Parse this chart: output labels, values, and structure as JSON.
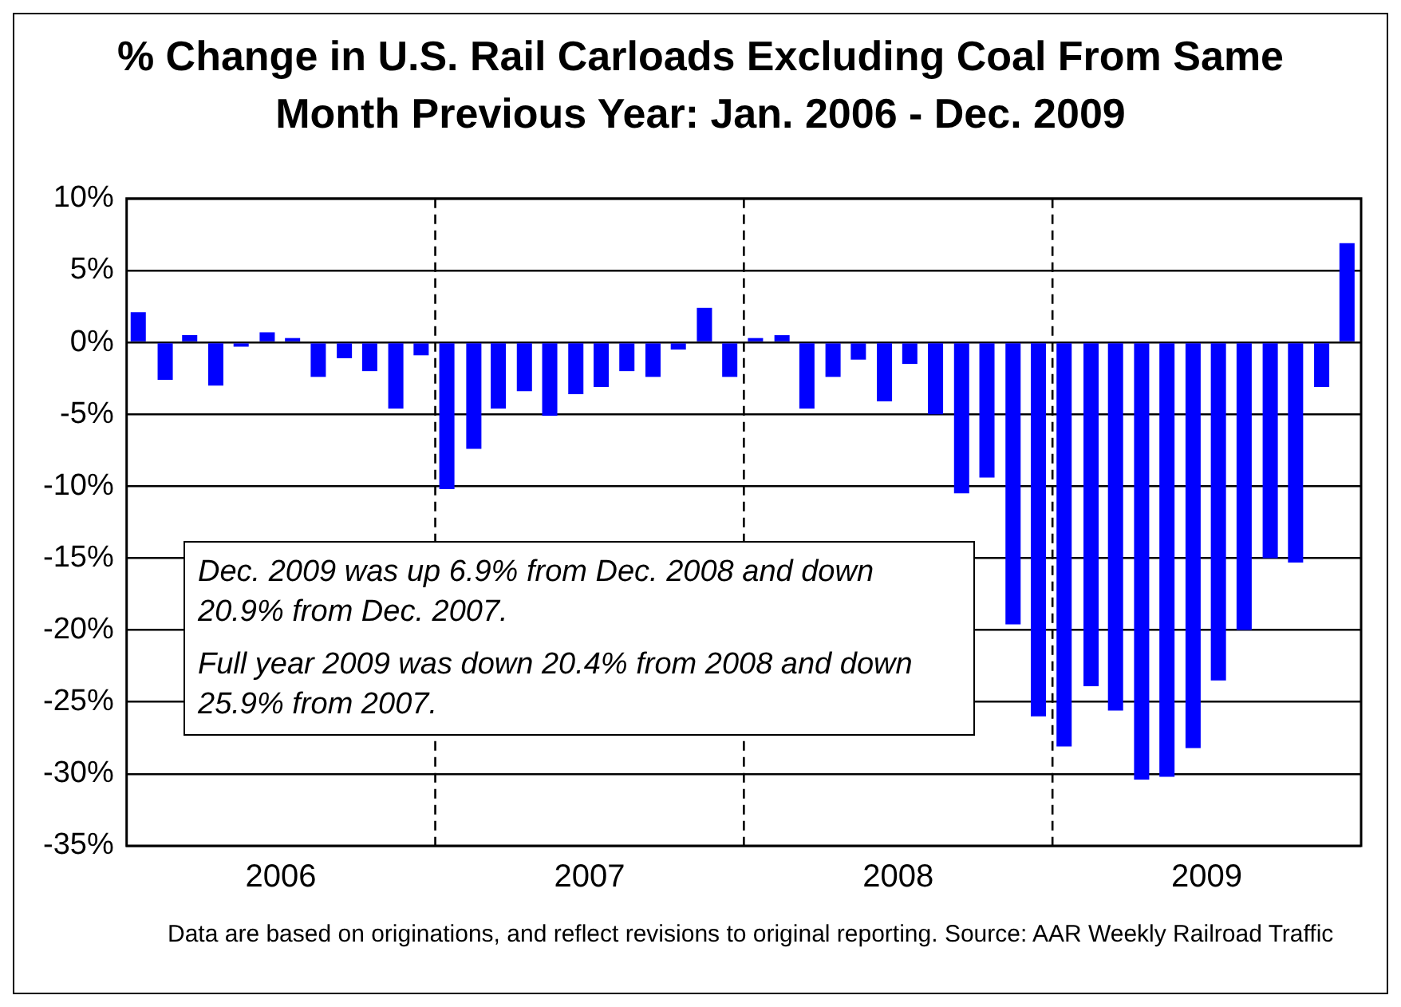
{
  "chart_data": {
    "type": "bar",
    "title": "% Change in U.S. Rail Carloads Excluding Coal From Same Month Previous Year: Jan. 2006 - Dec. 2009",
    "x": [
      "2006-01-15",
      "2006-02-15",
      "2006-03-15",
      "2006-04-15",
      "2006-05-15",
      "2006-06-15",
      "2006-07-15",
      "2006-08-15",
      "2006-09-15",
      "2006-10-15",
      "2006-11-15",
      "2006-12-15",
      "2007-01-15",
      "2007-02-15",
      "2007-03-15",
      "2007-04-15",
      "2007-05-15",
      "2007-06-15",
      "2007-07-15",
      "2007-08-15",
      "2007-09-15",
      "2007-10-15",
      "2007-11-15",
      "2007-12-15",
      "2008-01-15",
      "2008-02-15",
      "2008-03-15",
      "2008-04-15",
      "2008-05-15",
      "2008-06-15",
      "2008-07-15",
      "2008-08-15",
      "2008-09-15",
      "2008-10-15",
      "2008-11-15",
      "2008-12-15",
      "2009-01-15",
      "2009-02-15",
      "2009-03-15",
      "2009-04-15",
      "2009-05-15",
      "2009-06-15",
      "2009-07-15",
      "2009-08-15",
      "2009-09-15",
      "2009-10-15",
      "2009-11-15",
      "2009-12-15"
    ],
    "values": [
      2.1,
      -2.6,
      0.5,
      -3.0,
      -0.3,
      0.7,
      0.3,
      -2.4,
      -1.1,
      -2.0,
      -4.6,
      -0.9,
      -10.2,
      -7.4,
      -4.6,
      -3.4,
      -5.1,
      -3.6,
      -3.1,
      -2.0,
      -2.4,
      -0.5,
      2.4,
      -2.4,
      0.3,
      0.5,
      -4.6,
      -2.4,
      -1.2,
      -4.1,
      -1.5,
      -5.0,
      -10.5,
      -9.4,
      -19.6,
      -26.0,
      -28.1,
      -23.9,
      -25.6,
      -30.4,
      -30.2,
      -28.2,
      -23.5,
      -20.0,
      -15.0,
      -15.3,
      -3.1,
      6.9
    ],
    "color": "#0000ff",
    "xlim": [
      "2006-01",
      "2010-01"
    ],
    "xticks": [
      {
        "value": "2006-07",
        "label": "2006"
      },
      {
        "value": "2007-07",
        "label": "2007"
      },
      {
        "value": "2008-07",
        "label": "2008"
      },
      {
        "value": "2009-07",
        "label": "2009"
      }
    ],
    "ylim": [
      -35,
      10
    ],
    "yticks": [
      {
        "value": 10,
        "label": "10%"
      },
      {
        "value": 5,
        "label": "5%"
      },
      {
        "value": 0,
        "label": "0%"
      },
      {
        "value": -5,
        "label": "-5%"
      },
      {
        "value": -10,
        "label": "-10%"
      },
      {
        "value": -15,
        "label": "-15%"
      },
      {
        "value": -20,
        "label": "-20%"
      },
      {
        "value": -25,
        "label": "-25%"
      },
      {
        "value": -30,
        "label": "-30%"
      },
      {
        "value": -35,
        "label": "-35%"
      }
    ],
    "grid": "y",
    "ref_lines": [
      {
        "axis": "x",
        "value": "2007-01",
        "color": "#000000",
        "line_style": "dashed"
      },
      {
        "axis": "x",
        "value": "2008-01",
        "color": "#000000",
        "line_style": "dashed"
      },
      {
        "axis": "x",
        "value": "2009-01",
        "color": "#000000",
        "line_style": "dashed"
      }
    ],
    "annotations": [
      "Dec. 2009 was up 6.9% from Dec. 2008 and down 20.9% from Dec. 2007.",
      "Full year 2009 was down 20.4% from 2008 and down  25.9% from 2007.",
      "Data are based on originations, and reflect revisions to original reporting.  Source: AAR Weekly Railroad Traffic"
    ]
  }
}
